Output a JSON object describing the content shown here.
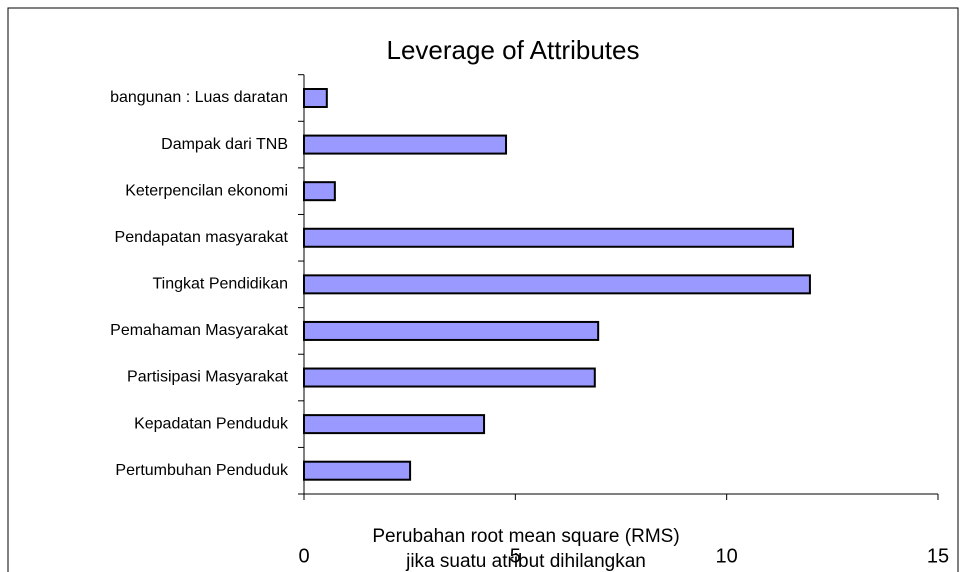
{
  "chart_data": {
    "type": "bar",
    "orientation": "horizontal",
    "title": "Leverage of Attributes",
    "xlabel": [
      "Perubahan root mean square (RMS)",
      "jika suatu atribut dihilangkan"
    ],
    "categories": [
      "bangunan : Luas daratan",
      "Dampak dari TNB",
      "Keterpencilan ekonomi",
      "Pendapatan masyarakat",
      "Tingkat Pendidikan",
      "Pemahaman Masyarakat",
      "Partisipasi Masyarakat",
      "Kepadatan Penduduk",
      "Pertumbuhan Penduduk"
    ],
    "values": [
      0.54,
      4.78,
      0.73,
      11.57,
      11.97,
      6.96,
      6.88,
      4.26,
      2.51
    ],
    "color": "#9999ff",
    "xlim": [
      0,
      15
    ],
    "xticks": [
      0,
      5,
      10,
      15
    ],
    "grid": false
  }
}
